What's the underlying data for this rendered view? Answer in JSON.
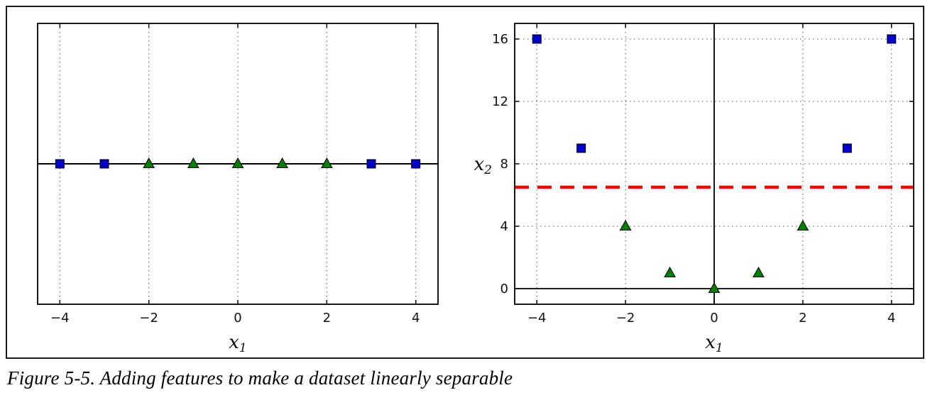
{
  "caption": "Figure 5-5. Adding features to make a dataset linearly separable",
  "chart_data": [
    {
      "id": "left",
      "type": "scatter",
      "title": "",
      "xlabel": {
        "base": "x",
        "sub": "1"
      },
      "ylabel": null,
      "xlim": [
        -4.5,
        4.5
      ],
      "ylim": [
        -1,
        1
      ],
      "xtick_values": [
        -4,
        -2,
        0,
        2,
        4
      ],
      "xtick_labels": [
        "−4",
        "−2",
        "0",
        "2",
        "4"
      ],
      "ytick_values": [],
      "ytick_labels": [],
      "grid": true,
      "legend": "none",
      "ref_lines": [
        {
          "name": "zero-line",
          "orientation": "horizontal",
          "at": 0,
          "style": "solid",
          "color": "#000000",
          "width": 2
        }
      ],
      "series": [
        {
          "name": "negative-class-squares",
          "marker": "square",
          "color": "#0000cc",
          "points": [
            [
              -4,
              0
            ],
            [
              -3,
              0
            ],
            [
              3,
              0
            ],
            [
              4,
              0
            ]
          ]
        },
        {
          "name": "positive-class-triangles",
          "marker": "triangle",
          "color": "#008000",
          "points": [
            [
              -2,
              0
            ],
            [
              -1,
              0
            ],
            [
              0,
              0
            ],
            [
              1,
              0
            ],
            [
              2,
              0
            ]
          ]
        }
      ]
    },
    {
      "id": "right",
      "type": "scatter",
      "title": "",
      "xlabel": {
        "base": "x",
        "sub": "1"
      },
      "ylabel": {
        "base": "x",
        "sub": "2"
      },
      "xlim": [
        -4.5,
        4.5
      ],
      "ylim": [
        -1,
        17
      ],
      "xtick_values": [
        -4,
        -2,
        0,
        2,
        4
      ],
      "xtick_labels": [
        "−4",
        "−2",
        "0",
        "2",
        "4"
      ],
      "ytick_values": [
        0,
        4,
        8,
        12,
        16
      ],
      "ytick_labels": [
        "0",
        "4",
        "8",
        "12",
        "16"
      ],
      "grid": true,
      "legend": "none",
      "ref_lines": [
        {
          "name": "x-axis-line",
          "orientation": "horizontal",
          "at": 0,
          "style": "solid",
          "color": "#000000",
          "width": 1.8
        },
        {
          "name": "y-axis-line",
          "orientation": "vertical",
          "at": 0,
          "style": "solid",
          "color": "#000000",
          "width": 1.8
        },
        {
          "name": "decision-boundary",
          "orientation": "horizontal",
          "at": 6.5,
          "style": "dashed",
          "color": "#ff0000",
          "width": 4.5
        }
      ],
      "series": [
        {
          "name": "negative-class-squares",
          "marker": "square",
          "color": "#0000cc",
          "points": [
            [
              -4,
              16
            ],
            [
              -3,
              9
            ],
            [
              3,
              9
            ],
            [
              4,
              16
            ]
          ]
        },
        {
          "name": "positive-class-triangles",
          "marker": "triangle",
          "color": "#008000",
          "points": [
            [
              -2,
              4
            ],
            [
              -1,
              1
            ],
            [
              0,
              0
            ],
            [
              1,
              1
            ],
            [
              2,
              4
            ]
          ]
        }
      ]
    }
  ],
  "marker_edge_color": "#000000"
}
